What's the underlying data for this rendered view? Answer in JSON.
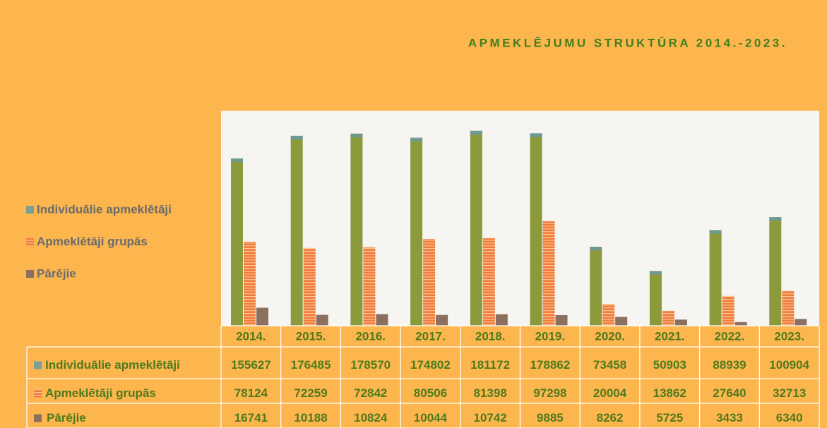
{
  "chart_data": {
    "type": "bar",
    "title": "APMEKLĒJUMU STRUKTŪRA 2014.-2023.",
    "categories": [
      "2014.",
      "2015.",
      "2016.",
      "2017.",
      "2018.",
      "2019.",
      "2020.",
      "2021.",
      "2022.",
      "2023."
    ],
    "series": [
      {
        "name": "Individuālie apmeklētāji",
        "color": "#8c9a3c",
        "values": [
          155627,
          176485,
          178570,
          174802,
          181172,
          178862,
          73458,
          50903,
          88939,
          100904
        ]
      },
      {
        "name": "Apmeklētāji grupās",
        "color": "#f07c3a",
        "values": [
          78124,
          72259,
          72842,
          80506,
          81398,
          97298,
          20004,
          13862,
          27640,
          32713
        ]
      },
      {
        "name": "Pārējie",
        "color": "#8b6f5f",
        "values": [
          16741,
          10188,
          10824,
          10044,
          10742,
          9885,
          8262,
          5725,
          3433,
          6340
        ]
      }
    ],
    "ylim": [
      0,
      200000
    ]
  }
}
